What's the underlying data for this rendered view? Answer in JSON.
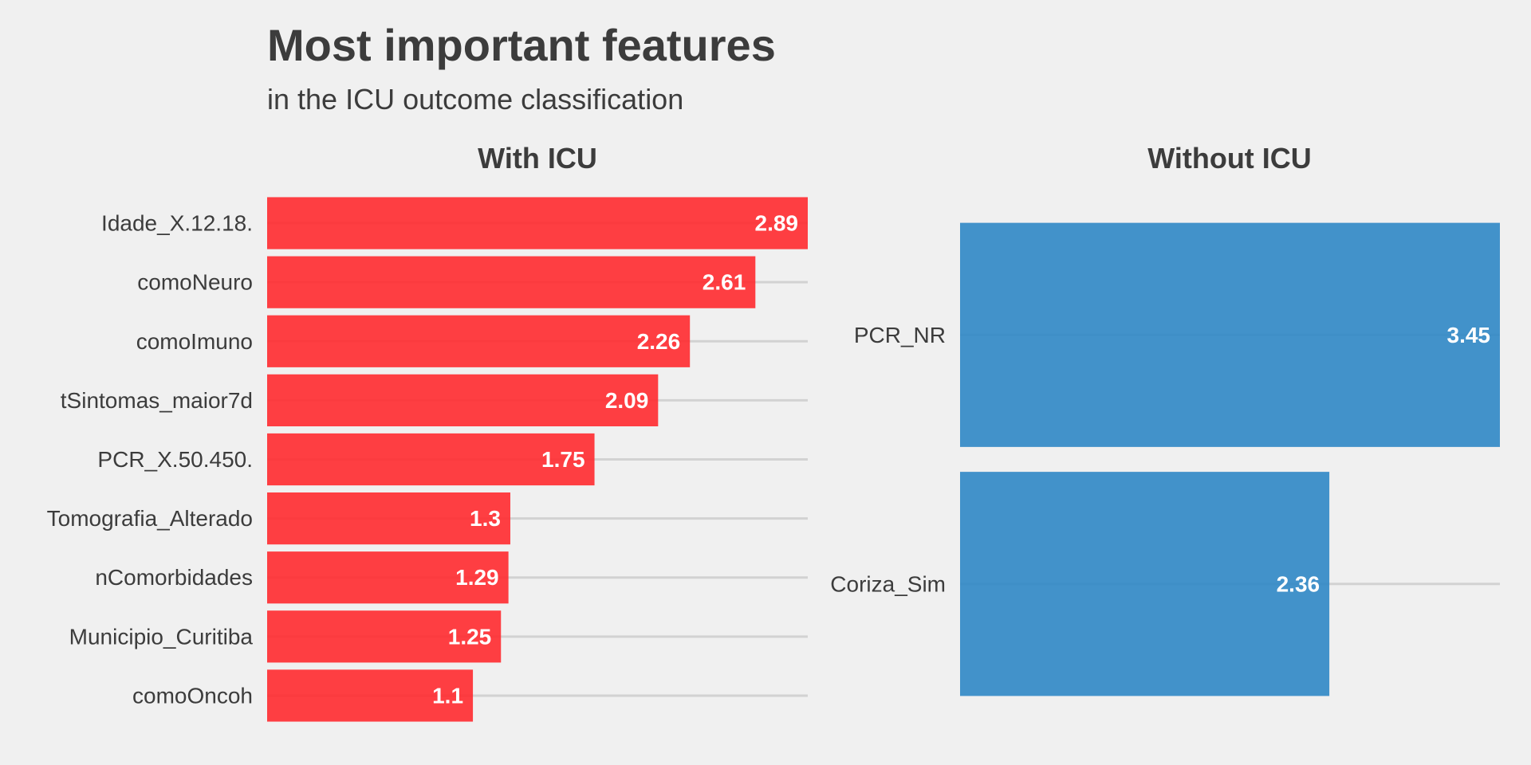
{
  "title": "Most important features",
  "subtitle": "in the ICU outcome classification",
  "colors": {
    "background": "#f0f0f0",
    "with_icu_bar": "#ff2a2f",
    "without_icu_bar": "#2f87c5",
    "gridline": "#d2d2d2",
    "text": "#3c3c3c"
  },
  "chart_data": [
    {
      "type": "bar",
      "orientation": "horizontal",
      "title": "With ICU",
      "categories": [
        "Idade_X.12.18.",
        "comoNeuro",
        "comoImuno",
        "tSintomas_maior7d",
        "PCR_X.50.450.",
        "Tomografia_Alterado",
        "nComorbidades",
        "Municipio_Curitiba",
        "comoOncoh"
      ],
      "values": [
        2.89,
        2.61,
        2.26,
        2.09,
        1.75,
        1.3,
        1.29,
        1.25,
        1.1
      ],
      "value_labels": [
        "2.89",
        "2.61",
        "2.26",
        "2.09",
        "1.75",
        "1.3",
        "1.29",
        "1.25",
        "1.1"
      ],
      "xlim": [
        0,
        2.89
      ],
      "color": "#ff2a2f",
      "grid": "horizontal lines at categories",
      "xlabel": "",
      "ylabel": ""
    },
    {
      "type": "bar",
      "orientation": "horizontal",
      "title": "Without ICU",
      "categories": [
        "PCR_NR",
        "Coriza_Sim"
      ],
      "values": [
        3.45,
        2.36
      ],
      "value_labels": [
        "3.45",
        "2.36"
      ],
      "xlim": [
        0,
        3.45
      ],
      "color": "#2f87c5",
      "grid": "horizontal lines at categories",
      "xlabel": "",
      "ylabel": ""
    }
  ]
}
